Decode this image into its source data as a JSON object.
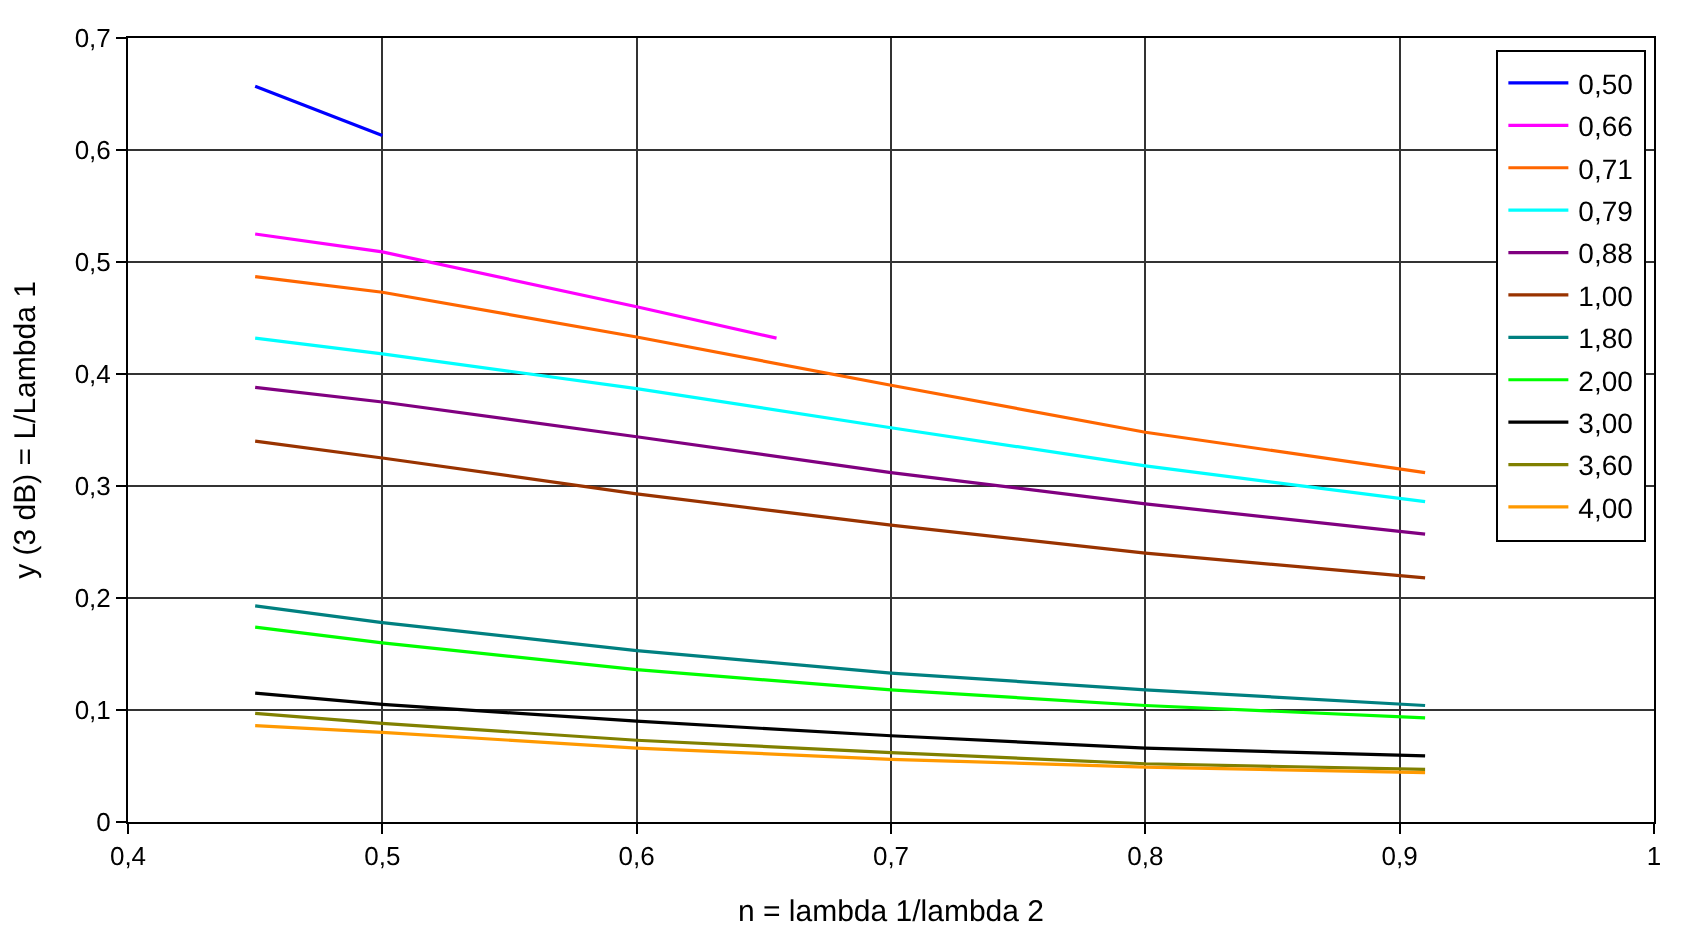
{
  "chart_data": {
    "type": "line",
    "xlabel": "n = lambda 1/lambda 2",
    "ylabel": "y (3 dB) = L/Lambda 1",
    "xlim": [
      0.4,
      1
    ],
    "xticks": [
      {
        "value": 0.4,
        "label": "0,4"
      },
      {
        "value": 0.5,
        "label": "0,5"
      },
      {
        "value": 0.6,
        "label": "0,6"
      },
      {
        "value": 0.7,
        "label": "0,7"
      },
      {
        "value": 0.8,
        "label": "0,8"
      },
      {
        "value": 0.9,
        "label": "0,9"
      },
      {
        "value": 1,
        "label": "1"
      }
    ],
    "ylim": [
      0,
      0.7
    ],
    "yticks": [
      0,
      {
        "value": 0.1,
        "label": "0,1"
      },
      {
        "value": 0.2,
        "label": "0,2"
      },
      {
        "value": 0.3,
        "label": "0,3"
      },
      {
        "value": 0.4,
        "label": "0,4"
      },
      {
        "value": 0.5,
        "label": "0,5"
      },
      {
        "value": 0.6,
        "label": "0,6"
      },
      {
        "value": 0.7,
        "label": "0,7"
      }
    ],
    "grid": true,
    "legend": "top right",
    "marker": "none",
    "line_style": "solid",
    "x": [
      0.45,
      0.5,
      0.6,
      0.7,
      0.8,
      0.91
    ],
    "series": [
      {
        "name": "0,50",
        "color": "#0000ff",
        "x": [
          0.45,
          0.5
        ],
        "values": [
          0.657,
          0.613
        ]
      },
      {
        "name": "0,66",
        "color": "#ff00ff",
        "x": [
          0.45,
          0.5,
          0.6,
          0.655
        ],
        "values": [
          0.525,
          0.509,
          0.46,
          0.432
        ]
      },
      {
        "name": "0,71",
        "color": "#ff6600",
        "values": [
          0.487,
          0.473,
          0.433,
          0.39,
          0.348,
          0.312
        ]
      },
      {
        "name": "0,79",
        "color": "#00ffff",
        "values": [
          0.432,
          0.418,
          0.387,
          0.352,
          0.318,
          0.286
        ]
      },
      {
        "name": "0,88",
        "color": "#800080",
        "values": [
          0.388,
          0.375,
          0.344,
          0.312,
          0.284,
          0.257
        ]
      },
      {
        "name": "1,00",
        "color": "#993300",
        "values": [
          0.34,
          0.325,
          0.293,
          0.265,
          0.24,
          0.218
        ]
      },
      {
        "name": "1,80",
        "color": "#008080",
        "values": [
          0.193,
          0.178,
          0.153,
          0.133,
          0.118,
          0.104
        ]
      },
      {
        "name": "2,00",
        "color": "#00ff00",
        "values": [
          0.174,
          0.16,
          0.136,
          0.118,
          0.104,
          0.093
        ]
      },
      {
        "name": "3,00",
        "color": "#000000",
        "values": [
          0.115,
          0.105,
          0.09,
          0.077,
          0.066,
          0.059
        ]
      },
      {
        "name": "3,60",
        "color": "#808000",
        "values": [
          0.097,
          0.088,
          0.073,
          0.062,
          0.052,
          0.047
        ]
      },
      {
        "name": "4,00",
        "color": "#ff9900",
        "values": [
          0.086,
          0.08,
          0.066,
          0.056,
          0.049,
          0.044
        ]
      }
    ]
  }
}
